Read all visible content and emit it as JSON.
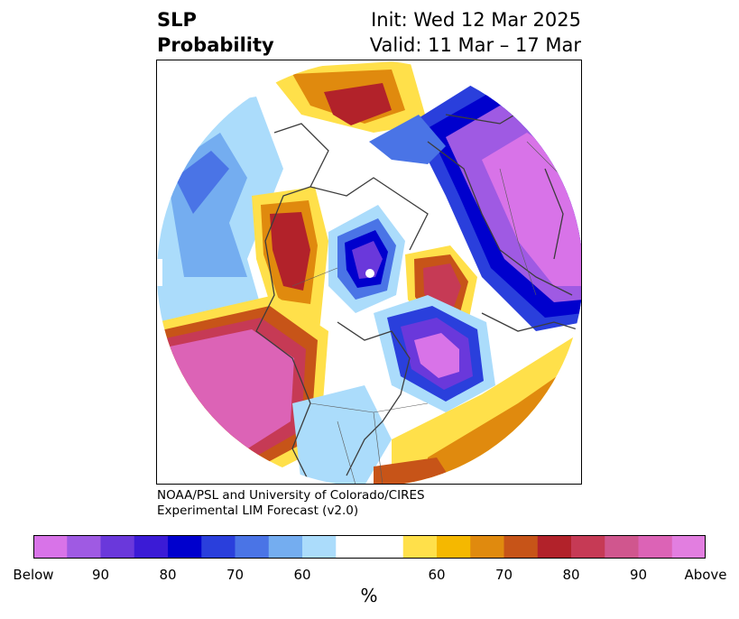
{
  "header": {
    "title_line1": "SLP",
    "title_line2": "Probability",
    "init_text": "Init: Wed 12 Mar 2025",
    "valid_text": "Valid: 11 Mar – 17 Mar"
  },
  "credit": {
    "line1": "NOAA/PSL and University of Colorado/CIRES",
    "line2": "Experimental LIM Forecast (v2.0)"
  },
  "colorbar": {
    "colors": [
      "#d873e8",
      "#9f5ae3",
      "#6a38db",
      "#3b1bd6",
      "#0000cd",
      "#2a3fdc",
      "#4a74e6",
      "#74adf0",
      "#abdcfb",
      "#ffffff",
      "#ffffff",
      "#ffe04a",
      "#f5b800",
      "#e08a0e",
      "#c75418",
      "#b2222a",
      "#c63a55",
      "#d0568e",
      "#dc63b6",
      "#e27ee0"
    ],
    "tick_labels": [
      "Below",
      "90",
      "80",
      "70",
      "60",
      "60",
      "70",
      "80",
      "90",
      "Above"
    ],
    "unit": "%"
  }
}
